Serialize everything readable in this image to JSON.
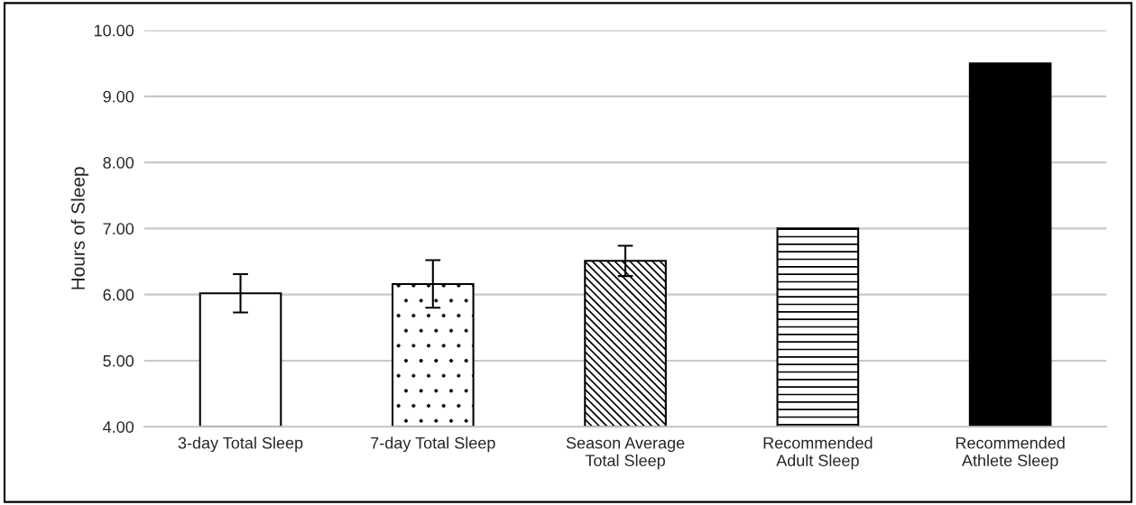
{
  "chart_data": {
    "type": "bar",
    "ylabel": "Hours of Sleep",
    "categories": [
      "3-day Total Sleep",
      "7-day Total Sleep",
      "Season Average\nTotal Sleep",
      "Recommended\nAdult Sleep",
      "Recommended\nAthlete Sleep"
    ],
    "values": [
      6.02,
      6.16,
      6.51,
      7.0,
      9.5
    ],
    "errors": [
      0.29,
      0.36,
      0.23,
      null,
      null
    ],
    "colors": [
      "#ffffff",
      "#ffffff",
      "#ffffff",
      "#ffffff",
      "#000000"
    ],
    "ylim": [
      4,
      10
    ],
    "yticks": [
      {
        "value": 4,
        "label": "4.00"
      },
      {
        "value": 5,
        "label": "5.00"
      },
      {
        "value": 6,
        "label": "6.00"
      },
      {
        "value": 7,
        "label": "7.00"
      },
      {
        "value": 8,
        "label": "8.00"
      },
      {
        "value": 9,
        "label": "9.00"
      },
      {
        "value": 10,
        "label": "10.00"
      }
    ],
    "grid": "y"
  }
}
